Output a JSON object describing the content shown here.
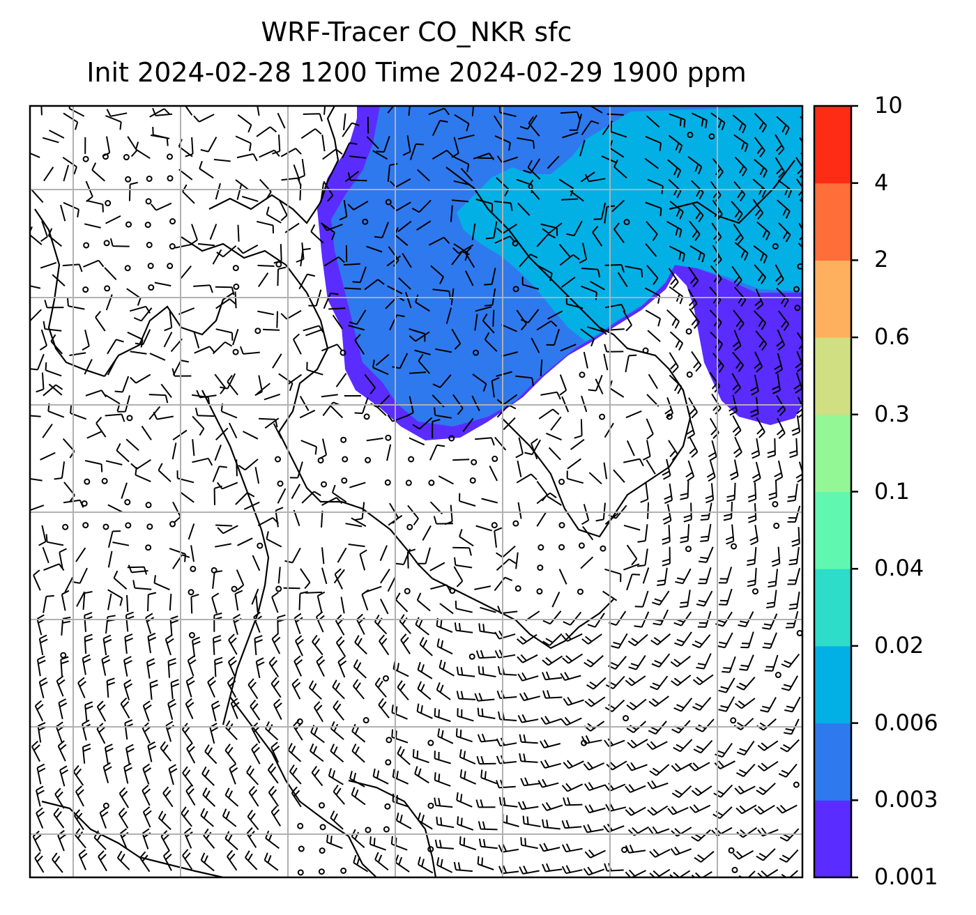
{
  "title": {
    "line1": "WRF-Tracer CO_NKR sfc",
    "line2": "Init 2024-02-28 1200 Time 2024-02-29 1900 ppm"
  },
  "colorbar": {
    "levels": [
      "0.001",
      "0.003",
      "0.006",
      "0.02",
      "0.04",
      "0.1",
      "0.3",
      "0.6",
      "2",
      "4",
      "10"
    ],
    "colors": [
      "#5a2cff",
      "#2f79ee",
      "#03b0e6",
      "#2ddcc9",
      "#60f8b0",
      "#93f795",
      "#cfdf82",
      "#feb05e",
      "#ff6d38",
      "#ff2c15"
    ]
  },
  "map": {
    "background": "#ffffff",
    "gridlines": true,
    "plume_colors_used": [
      "#5a2cff",
      "#2f79ee",
      "#03b0e6"
    ]
  }
}
